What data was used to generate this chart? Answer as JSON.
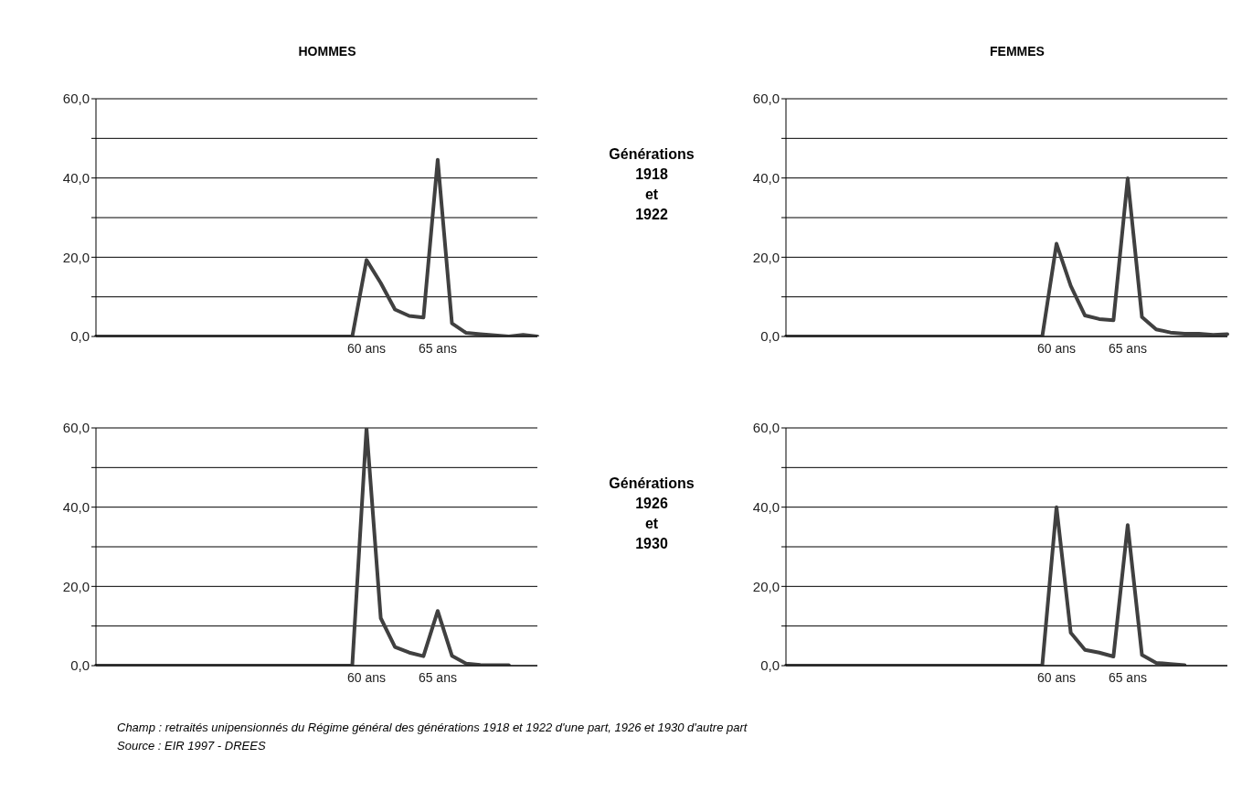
{
  "chart_data": [
    {
      "type": "line",
      "title": "HOMMES",
      "annotations": [
        "Générations\n1918\net\n1922"
      ],
      "categories": [
        null,
        null,
        null,
        null,
        null,
        null,
        null,
        null,
        null,
        null,
        null,
        null,
        null,
        null,
        null,
        null,
        null,
        null,
        null,
        "60 ans",
        null,
        null,
        null,
        null,
        "65 ans",
        null,
        null,
        null,
        null,
        null,
        null,
        null
      ],
      "values": [
        0,
        0,
        0,
        0,
        0,
        0,
        0,
        0,
        0,
        0,
        0,
        0,
        0,
        0,
        0,
        0,
        0,
        0,
        0,
        19.3,
        13.5,
        6.8,
        5.2,
        4.8,
        44.6,
        3.3,
        0.9,
        0.6,
        0.3,
        0,
        0.4,
        0
      ],
      "color": "#404040",
      "ylim": [
        0,
        60
      ],
      "yticks": [
        {
          "value": 0,
          "label": "0,0"
        },
        {
          "value": 10,
          "label": null
        },
        {
          "value": 20,
          "label": "20,0"
        },
        {
          "value": 30,
          "label": null
        },
        {
          "value": 40,
          "label": "40,0"
        },
        {
          "value": 50,
          "label": null
        },
        {
          "value": 60,
          "label": "60,0"
        }
      ],
      "grid": "y",
      "marker": "none",
      "line_style": "solid"
    },
    {
      "type": "line",
      "title": "FEMMES",
      "categories": [
        null,
        null,
        null,
        null,
        null,
        null,
        null,
        null,
        null,
        null,
        null,
        null,
        null,
        null,
        null,
        null,
        null,
        null,
        null,
        "60 ans",
        null,
        null,
        null,
        null,
        "65 ans",
        null,
        null,
        null,
        null,
        null,
        null,
        null
      ],
      "values": [
        0,
        0,
        0,
        0,
        0,
        0,
        0,
        0,
        0,
        0,
        0,
        0,
        0,
        0,
        0,
        0,
        0,
        0,
        0,
        23.4,
        12.8,
        5.3,
        4.4,
        4.1,
        39.9,
        4.9,
        1.8,
        1.0,
        0.7,
        0.7,
        0.4,
        0.6
      ],
      "color": "#404040",
      "ylim": [
        0,
        60
      ],
      "yticks": [
        {
          "value": 0,
          "label": "0,0"
        },
        {
          "value": 10,
          "label": null
        },
        {
          "value": 20,
          "label": "20,0"
        },
        {
          "value": 30,
          "label": null
        },
        {
          "value": 40,
          "label": "40,0"
        },
        {
          "value": 50,
          "label": null
        },
        {
          "value": 60,
          "label": "60,0"
        }
      ],
      "grid": "y",
      "marker": "none",
      "line_style": "solid"
    },
    {
      "type": "line",
      "annotations": [
        "Générations\n1926\net\n1930",
        "Champ : retraités unipensionnés du Régime général des générations 1918 et 1922 d'une part, 1926 et 1930 d'autre part",
        "Source : EIR 1997 - DREES"
      ],
      "categories": [
        null,
        null,
        null,
        null,
        null,
        null,
        null,
        null,
        null,
        null,
        null,
        null,
        null,
        null,
        null,
        null,
        null,
        null,
        null,
        "60 ans",
        null,
        null,
        null,
        null,
        "65 ans",
        null,
        null,
        null,
        null,
        null,
        null,
        null
      ],
      "values": [
        0,
        0,
        0,
        0,
        0,
        0,
        0,
        0,
        0,
        0,
        0,
        0,
        0,
        0,
        0,
        0,
        0,
        0,
        0,
        60,
        12.0,
        4.7,
        3.3,
        2.4,
        13.8,
        2.5,
        0.5,
        0.2,
        0.1,
        0.1,
        null,
        null
      ],
      "color": "#404040",
      "ylim": [
        0,
        60
      ],
      "yticks": [
        {
          "value": 0,
          "label": "0,0"
        },
        {
          "value": 10,
          "label": null
        },
        {
          "value": 20,
          "label": "20,0"
        },
        {
          "value": 30,
          "label": null
        },
        {
          "value": 40,
          "label": "40,0"
        },
        {
          "value": 50,
          "label": null
        },
        {
          "value": 60,
          "label": "60,0"
        }
      ],
      "grid": "y",
      "marker": "none",
      "line_style": "solid"
    },
    {
      "type": "line",
      "categories": [
        null,
        null,
        null,
        null,
        null,
        null,
        null,
        null,
        null,
        null,
        null,
        null,
        null,
        null,
        null,
        null,
        null,
        null,
        null,
        "60 ans",
        null,
        null,
        null,
        null,
        "65 ans",
        null,
        null,
        null,
        null,
        null,
        null,
        null
      ],
      "values": [
        0,
        0,
        0,
        0,
        0,
        0,
        0,
        0,
        0,
        0,
        0,
        0,
        0,
        0,
        0,
        0,
        0,
        0,
        0,
        40.0,
        8.3,
        4.0,
        3.3,
        2.3,
        35.5,
        2.7,
        0.7,
        0.4,
        0.1,
        null,
        null,
        null
      ],
      "color": "#404040",
      "ylim": [
        0,
        60
      ],
      "yticks": [
        {
          "value": 0,
          "label": "0,0"
        },
        {
          "value": 10,
          "label": null
        },
        {
          "value": 20,
          "label": "20,0"
        },
        {
          "value": 30,
          "label": null
        },
        {
          "value": 40,
          "label": "40,0"
        },
        {
          "value": 50,
          "label": null
        },
        {
          "value": 60,
          "label": "60,0"
        }
      ],
      "grid": "y",
      "marker": "none",
      "line_style": "solid"
    }
  ]
}
